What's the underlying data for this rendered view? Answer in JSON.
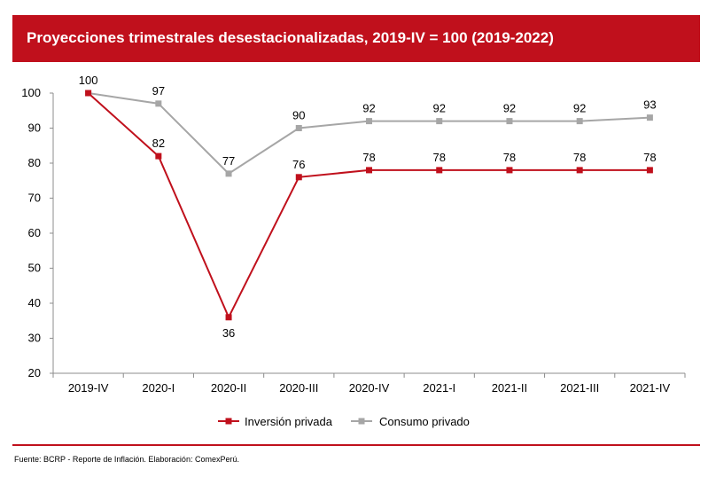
{
  "header": {
    "title": "Proyecciones trimestrales desestacionalizadas, 2019-IV = 100 (2019-2022)"
  },
  "footer": {
    "source": "Fuente: BCRP - Reporte de Inflación. Elaboración: ComexPerú."
  },
  "colors": {
    "brand": "#c0101c",
    "inversion": "#c0101c",
    "consumo": "#a6a6a6"
  },
  "chart_data": {
    "type": "line",
    "categories": [
      "2019-IV",
      "2020-I",
      "2020-II",
      "2020-III",
      "2020-IV",
      "2021-I",
      "2021-II",
      "2021-III",
      "2021-IV"
    ],
    "ylim": [
      20,
      100
    ],
    "yticks": [
      20,
      30,
      40,
      50,
      60,
      70,
      80,
      90,
      100
    ],
    "grid": false,
    "legend_position": "bottom",
    "series": [
      {
        "name": "Inversión privada",
        "color": "#c0101c",
        "values": [
          100,
          82,
          36,
          76,
          78,
          78,
          78,
          78,
          78
        ],
        "labels": [
          "",
          "82",
          "36",
          "76",
          "78",
          "78",
          "78",
          "78",
          "78"
        ]
      },
      {
        "name": "Consumo privado",
        "color": "#a6a6a6",
        "values": [
          100,
          97,
          77,
          90,
          92,
          92,
          92,
          92,
          93
        ],
        "labels": [
          "100",
          "97",
          "77",
          "90",
          "92",
          "92",
          "92",
          "92",
          "93"
        ]
      }
    ]
  }
}
